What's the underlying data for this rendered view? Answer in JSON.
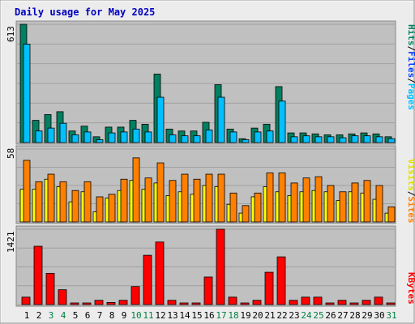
{
  "title": "Daily usage for May 2025",
  "colors": {
    "panel_bg": "#c0c0c0",
    "hits": "#008060",
    "files": "#00c0ff",
    "pages": "#00e0ff",
    "visits": "#ffff00",
    "sites": "#ff8000",
    "kbytes": "#ff0000",
    "weekday_label": "#000000",
    "weekend_label": "#008040",
    "title": "#0000c0"
  },
  "legend_top": [
    {
      "text": "Hits",
      "color": "#008060"
    },
    {
      "text": "/",
      "color": "#000000"
    },
    {
      "text": "Files",
      "color": "#0040ff"
    },
    {
      "text": "/",
      "color": "#000000"
    },
    {
      "text": "Pages",
      "color": "#00c0ff"
    }
  ],
  "legend_mid": [
    {
      "text": "Visits",
      "color": "#e0e000"
    },
    {
      "text": "/",
      "color": "#000000"
    },
    {
      "text": "Sites",
      "color": "#ff8000"
    }
  ],
  "legend_bot": [
    {
      "text": "KBytes",
      "color": "#ff0000"
    }
  ],
  "chart_data": {
    "type": "bar",
    "categories": [
      "1",
      "2",
      "3",
      "4",
      "5",
      "6",
      "7",
      "8",
      "9",
      "10",
      "11",
      "12",
      "13",
      "14",
      "15",
      "16",
      "17",
      "18",
      "19",
      "20",
      "21",
      "22",
      "23",
      "24",
      "25",
      "26",
      "27",
      "28",
      "29",
      "30",
      "31"
    ],
    "weekend_days": [
      "3",
      "4",
      "10",
      "11",
      "17",
      "18",
      "24",
      "25",
      "31"
    ],
    "panels": [
      {
        "name": "hits-files-pages",
        "ymax_label": "613",
        "ymax": 613,
        "series": [
          {
            "name": "Hits",
            "values": [
              613,
              115,
              145,
              160,
              60,
              85,
              30,
              80,
              80,
              115,
              95,
              355,
              70,
              60,
              60,
              105,
              300,
              70,
              20,
              75,
              95,
              290,
              50,
              50,
              45,
              40,
              40,
              45,
              50,
              45,
              30
            ]
          },
          {
            "name": "Files",
            "values": [
              510,
              60,
              75,
              100,
              40,
              55,
              15,
              50,
              55,
              70,
              55,
              235,
              40,
              35,
              35,
              65,
              235,
              55,
              15,
              55,
              60,
              215,
              30,
              35,
              30,
              30,
              25,
              35,
              35,
              30,
              20
            ]
          },
          {
            "name": "Pages",
            "values": []
          }
        ]
      },
      {
        "name": "visits-sites",
        "ymax_label": "58",
        "ymax": 58,
        "series": [
          {
            "name": "Visits",
            "values": [
              26,
              26,
              34,
              28,
              16,
              24,
              8,
              19,
              25,
              33,
              26,
              31,
              21,
              24,
              22,
              29,
              28,
              14,
              7,
              20,
              28,
              24,
              21,
              24,
              25,
              24,
              17,
              24,
              23,
              18,
              7
            ]
          },
          {
            "name": "Sites",
            "values": [
              49,
              32,
              38,
              32,
              25,
              32,
              20,
              22,
              34,
              51,
              35,
              47,
              33,
              38,
              34,
              38,
              38,
              23,
              13,
              23,
              39,
              39,
              31,
              35,
              36,
              29,
              24,
              31,
              33,
              29,
              12
            ]
          }
        ]
      },
      {
        "name": "kbytes",
        "ymax_label": "1421",
        "ymax": 1421,
        "series": [
          {
            "name": "KBytes",
            "values": [
              140,
              1100,
              590,
              280,
              20,
              30,
              80,
              40,
              80,
              340,
              930,
              1180,
              80,
              20,
              20,
              520,
              1421,
              140,
              20,
              80,
              610,
              900,
              80,
              140,
              140,
              30,
              80,
              20,
              80,
              140,
              30
            ]
          }
        ]
      }
    ]
  }
}
